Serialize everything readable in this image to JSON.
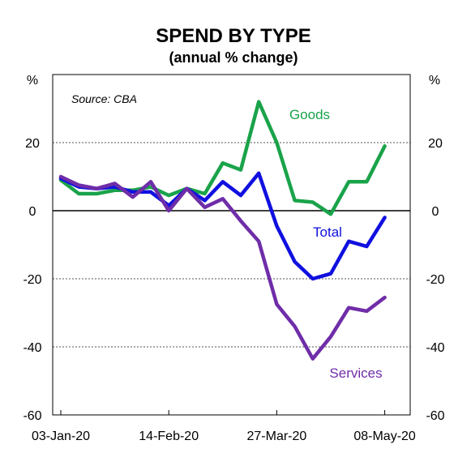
{
  "chart_data": {
    "type": "line",
    "title": "SPEND BY TYPE",
    "subtitle": "(annual % change)",
    "source": "Source: CBA",
    "y_unit_left": "%",
    "y_unit_right": "%",
    "ylim": [
      -60,
      40
    ],
    "yticks": [
      20,
      0,
      -20,
      -40,
      -60
    ],
    "ytick_labels": [
      "20",
      "0",
      "-20",
      "-40",
      "-60"
    ],
    "grid": "dashed horizontal at 20, -20, -40; solid zero line",
    "x": [
      "2020-01-03",
      "2020-01-10",
      "2020-01-17",
      "2020-01-24",
      "2020-01-31",
      "2020-02-07",
      "2020-02-14",
      "2020-02-21",
      "2020-02-28",
      "2020-03-06",
      "2020-03-13",
      "2020-03-20",
      "2020-03-27",
      "2020-04-03",
      "2020-04-10",
      "2020-04-17",
      "2020-04-24",
      "2020-05-01",
      "2020-05-08"
    ],
    "xtick_labels": [
      "03-Jan-20",
      "14-Feb-20",
      "27-Mar-20",
      "08-May-20"
    ],
    "xtick_dates": [
      "2020-01-03",
      "2020-02-14",
      "2020-03-27",
      "2020-05-08"
    ],
    "series": [
      {
        "name": "Goods",
        "color": "#1aa34a",
        "values": [
          9,
          5,
          5,
          6,
          6,
          7,
          4.5,
          6.5,
          5,
          14,
          12,
          32,
          20,
          3,
          2.5,
          -1,
          8.5,
          8.5,
          19
        ]
      },
      {
        "name": "Total",
        "color": "#1010e0",
        "values": [
          9.5,
          7,
          6.5,
          7,
          5.5,
          5.5,
          1.5,
          6.5,
          3,
          8.5,
          4.5,
          11,
          -4.5,
          -15,
          -20,
          -18.5,
          -9,
          -10.5,
          -2
        ]
      },
      {
        "name": "Services",
        "color": "#6f2da8",
        "values": [
          10,
          7.5,
          6.5,
          8,
          4,
          8.5,
          0,
          6.5,
          1,
          3.5,
          -3,
          -9,
          -27.5,
          -34,
          -43.5,
          -37,
          -28.5,
          -29.5,
          -25.5
        ]
      }
    ]
  }
}
